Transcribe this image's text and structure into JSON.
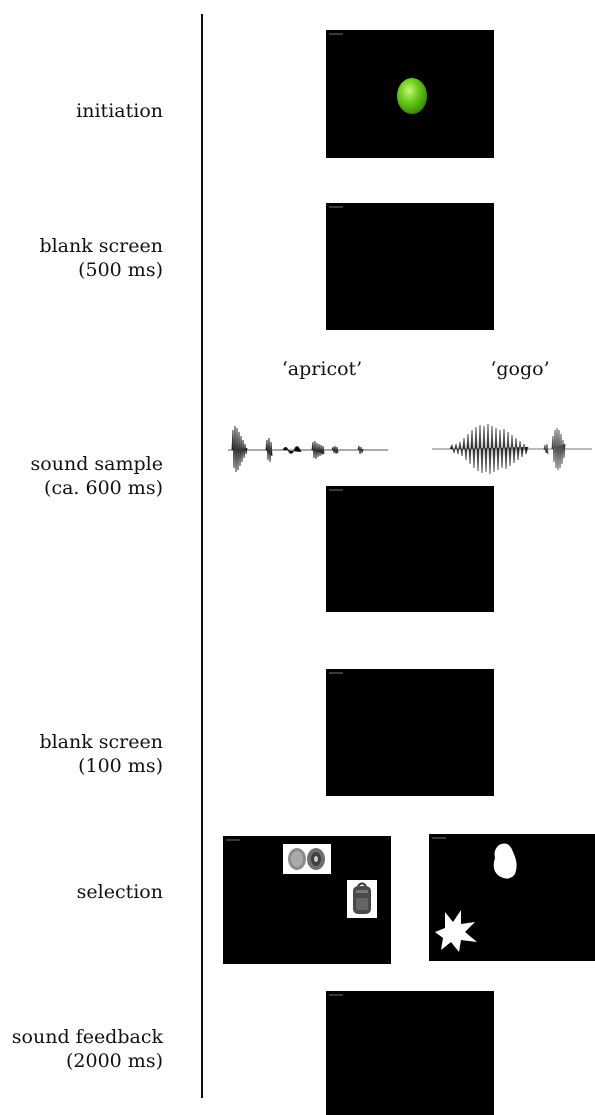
{
  "steps": [
    {
      "label_line1": "initiation",
      "label_line2": ""
    },
    {
      "label_line1": "blank screen",
      "label_line2": "(500 ms)"
    },
    {
      "label_line1": "sound sample",
      "label_line2": "(ca. 600 ms)"
    },
    {
      "label_line1": "blank screen",
      "label_line2": "(100 ms)"
    },
    {
      "label_line1": "selection",
      "label_line2": ""
    },
    {
      "label_line1": "sound feedback",
      "label_line2": "(2000 ms)"
    }
  ],
  "sound_sample": {
    "word_left": "‘apricot’",
    "word_right": "‘gogo’"
  },
  "colors": {
    "screen": "#000000",
    "green_button": "#5ec415",
    "timeline": "#111111"
  },
  "icons": {
    "initiation": "green-button-icon",
    "selection_left": [
      "kiwi-fruit-icon",
      "backpack-icon"
    ],
    "selection_right": [
      "white-blob-icon",
      "white-star-shape-icon"
    ]
  }
}
